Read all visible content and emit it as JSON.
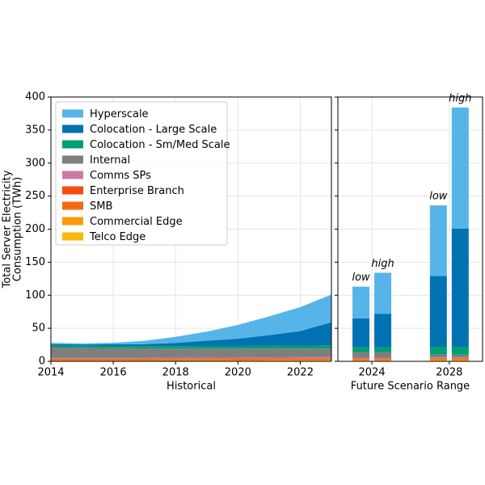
{
  "chart_data": [
    {
      "type": "area",
      "stacked": true,
      "xlabel": "Historical",
      "ylabel": [
        "Total Server Electricity",
        "Consumption (TWh)"
      ],
      "x": [
        2014,
        2015,
        2016,
        2017,
        2018,
        2019,
        2020,
        2021,
        2022,
        2023
      ],
      "xlim": [
        2014,
        2023
      ],
      "xticks": [
        2014,
        2016,
        2018,
        2020,
        2022
      ],
      "ylim": [
        0,
        400
      ],
      "yticks": [
        0,
        50,
        100,
        150,
        200,
        250,
        300,
        350,
        400
      ],
      "grid": true,
      "legend": "upper left",
      "series": [
        {
          "name": "Hyperscale",
          "color": "#56b4e9",
          "values": [
            2,
            1.5,
            2.3,
            5,
            9.1,
            13.8,
            20.8,
            28.4,
            36.3,
            42
          ]
        },
        {
          "name": "Colocation - Large Scale",
          "color": "#0072b2",
          "values": [
            2,
            2,
            2.5,
            3,
            5,
            8,
            11,
            16,
            22,
            35
          ]
        },
        {
          "name": "Colocation - Sm/Med Scale",
          "color": "#009e73",
          "values": [
            3,
            3,
            3.2,
            3.4,
            3.6,
            3.8,
            4,
            4.2,
            4.5,
            4.8
          ]
        },
        {
          "name": "Internal",
          "color": "#7f7f7f",
          "values": [
            16,
            15.5,
            15,
            14.5,
            14,
            14,
            13.5,
            13.5,
            13,
            13
          ]
        },
        {
          "name": "Comms SPs",
          "color": "#cc79a7",
          "values": [
            1,
            1,
            1,
            1,
            1,
            1,
            1,
            1.1,
            1.1,
            1.1
          ]
        },
        {
          "name": "Enterprise Branch",
          "color": "#f84c0e",
          "values": [
            1,
            1,
            1,
            1,
            1,
            1,
            1.1,
            1.1,
            1.2,
            1.2
          ]
        },
        {
          "name": "SMB",
          "color": "#f06b0f",
          "values": [
            1.5,
            1.5,
            1.5,
            1.5,
            1.6,
            1.6,
            1.7,
            1.7,
            1.8,
            1.8
          ]
        },
        {
          "name": "Commercial Edge",
          "color": "#fd9a0c",
          "values": [
            1,
            1,
            1,
            1,
            1.1,
            1.1,
            1.2,
            1.2,
            1.3,
            1.3
          ]
        },
        {
          "name": "Telco Edge",
          "color": "#f7b90d",
          "values": [
            0.5,
            0.5,
            0.5,
            0.6,
            0.6,
            0.7,
            0.7,
            0.8,
            0.8,
            0.9
          ]
        }
      ]
    },
    {
      "type": "bar",
      "stacked": true,
      "xlabel": "Future Scenario Range",
      "categories": [
        "2024",
        "2028"
      ],
      "bar_labels": [
        [
          "low",
          "high"
        ],
        [
          "low",
          "high"
        ]
      ],
      "ylim": [
        0,
        400
      ],
      "yticks": [
        0,
        50,
        100,
        150,
        200,
        250,
        300,
        350,
        400
      ],
      "grid": true,
      "series": [
        {
          "name": "Hyperscale",
          "color": "#56b4e9",
          "values": [
            [
              48,
              62
            ],
            [
              107,
              183
            ]
          ]
        },
        {
          "name": "Colocation - Large Scale",
          "color": "#0072b2",
          "values": [
            [
              44,
              51
            ],
            [
              107,
              179
            ]
          ]
        },
        {
          "name": "Colocation - Sm/Med Scale",
          "color": "#009e73",
          "values": [
            [
              7,
              7
            ],
            [
              12,
              12
            ]
          ]
        },
        {
          "name": "Internal",
          "color": "#7f7f7f",
          "values": [
            [
              8.5,
              8.5
            ],
            [
              4,
              4
            ]
          ]
        },
        {
          "name": "Comms SPs",
          "color": "#cc79a7",
          "values": [
            [
              1,
              1
            ],
            [
              1,
              1
            ]
          ]
        },
        {
          "name": "Enterprise Branch",
          "color": "#f84c0e",
          "values": [
            [
              1,
              1
            ],
            [
              1,
              1
            ]
          ]
        },
        {
          "name": "SMB",
          "color": "#f06b0f",
          "values": [
            [
              1.5,
              1.5
            ],
            [
              1.5,
              1.5
            ]
          ]
        },
        {
          "name": "Commercial Edge",
          "color": "#fd9a0c",
          "values": [
            [
              1.2,
              1.2
            ],
            [
              1.5,
              1.5
            ]
          ]
        },
        {
          "name": "Telco Edge",
          "color": "#f7b90d",
          "values": [
            [
              0.8,
              0.8
            ],
            [
              1,
              1
            ]
          ]
        }
      ]
    }
  ]
}
